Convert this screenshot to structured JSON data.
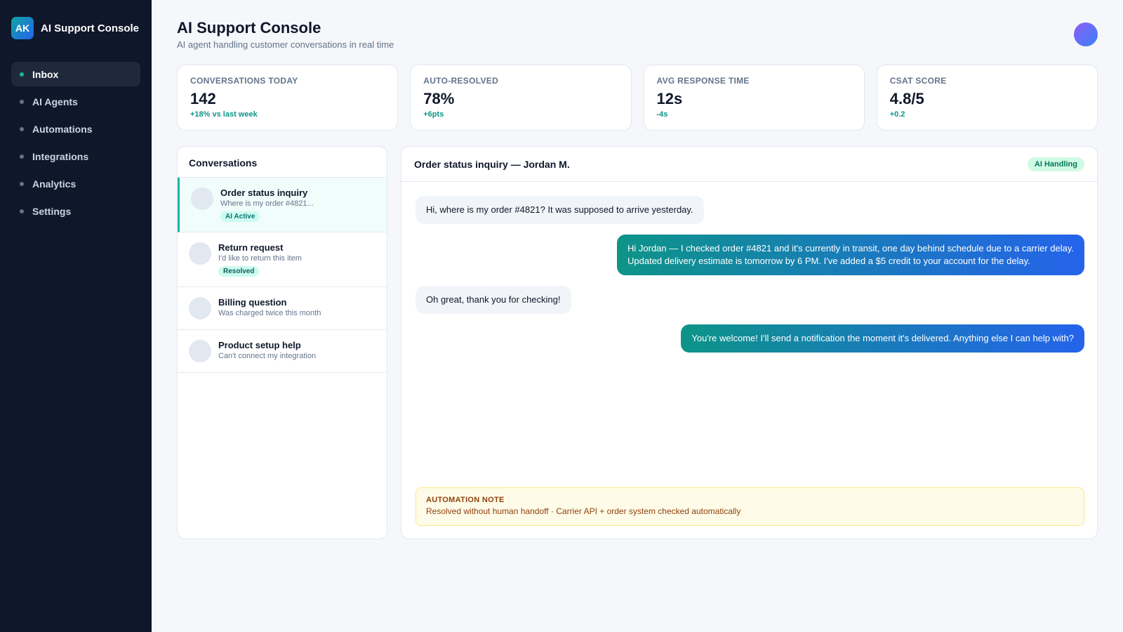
{
  "brand": {
    "logo_text": "AK",
    "name": "AI Support Console"
  },
  "sidebar": {
    "items": [
      {
        "label": "Inbox",
        "active": true
      },
      {
        "label": "AI Agents",
        "active": false
      },
      {
        "label": "Automations",
        "active": false
      },
      {
        "label": "Integrations",
        "active": false
      },
      {
        "label": "Analytics",
        "active": false
      },
      {
        "label": "Settings",
        "active": false
      }
    ]
  },
  "header": {
    "title": "AI Support Console",
    "subtitle": "AI agent handling customer conversations in real time"
  },
  "stats": [
    {
      "label": "CONVERSATIONS TODAY",
      "value": "142",
      "delta": "+18% vs last week"
    },
    {
      "label": "AUTO-RESOLVED",
      "value": "78%",
      "delta": "+6pts"
    },
    {
      "label": "AVG RESPONSE TIME",
      "value": "12s",
      "delta": "-4s"
    },
    {
      "label": "CSAT SCORE",
      "value": "4.8/5",
      "delta": "+0.2"
    }
  ],
  "conversations": {
    "header": "Conversations",
    "items": [
      {
        "title": "Order status inquiry",
        "preview": "Where is my order #4821...",
        "badge": "AI Active",
        "active": true
      },
      {
        "title": "Return request",
        "preview": "I'd like to return this item",
        "badge": "Resolved",
        "active": false
      },
      {
        "title": "Billing question",
        "preview": "Was charged twice this month",
        "badge": "",
        "active": false
      },
      {
        "title": "Product setup help",
        "preview": "Can't connect my integration",
        "badge": "",
        "active": false
      }
    ]
  },
  "chat": {
    "title": "Order status inquiry — Jordan M.",
    "status": "AI Handling",
    "messages": [
      {
        "from": "customer",
        "lines": [
          "Hi, where is my order #4821? It was supposed to arrive yesterday."
        ]
      },
      {
        "from": "agent",
        "lines": [
          "Hi Jordan — I checked order #4821 and it's currently in transit, one day behind schedule due to a carrier delay.",
          "Updated delivery estimate is tomorrow by 6 PM. I've added a $5 credit to your account for the delay."
        ]
      },
      {
        "from": "customer",
        "lines": [
          "Oh great, thank you for checking!"
        ]
      },
      {
        "from": "agent",
        "lines": [
          "You're welcome! I'll send a notification the moment it's delivered. Anything else I can help with?"
        ]
      }
    ],
    "note": {
      "label": "AUTOMATION NOTE",
      "text": "Resolved without human handoff · Carrier API + order system checked automatically"
    }
  }
}
